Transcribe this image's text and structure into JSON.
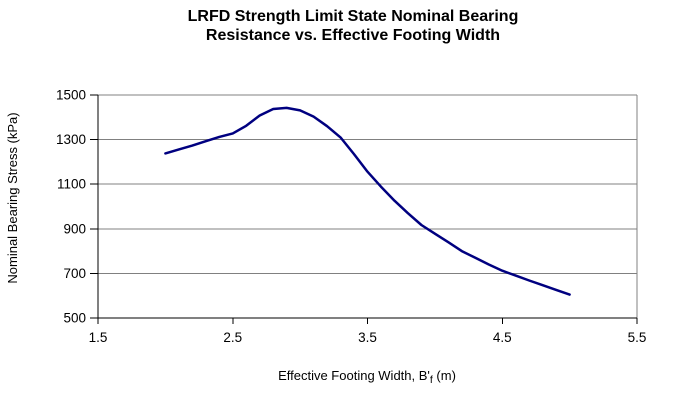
{
  "chart_data": {
    "type": "line",
    "title_line1": "LRFD Strength Limit State Nominal Bearing",
    "title_line2": "Resistance vs. Effective Footing Width",
    "ylabel": "Nominal Bearing Stress (kPa)",
    "xlabel_prefix": "Effective Footing Width, B'",
    "xlabel_sub": "f",
    "xlabel_suffix": " (m)",
    "xlim": [
      1.5,
      5.5
    ],
    "ylim": [
      500,
      1500
    ],
    "x_ticks": [
      1.5,
      2.5,
      3.5,
      4.5,
      5.5
    ],
    "x_tick_labels": [
      "1.5",
      "2.5",
      "3.5",
      "4.5",
      "5.5"
    ],
    "y_ticks": [
      500,
      700,
      900,
      1100,
      1300,
      1500
    ],
    "y_tick_labels": [
      "500",
      "700",
      "900",
      "1100",
      "1300",
      "1500"
    ],
    "grid": "horizontal",
    "legend": "none",
    "series": [
      {
        "color": "#000080",
        "points": [
          [
            2.0,
            1238
          ],
          [
            2.1,
            1256
          ],
          [
            2.2,
            1273
          ],
          [
            2.3,
            1293
          ],
          [
            2.4,
            1312
          ],
          [
            2.5,
            1328
          ],
          [
            2.6,
            1362
          ],
          [
            2.7,
            1408
          ],
          [
            2.8,
            1437
          ],
          [
            2.9,
            1442
          ],
          [
            3.0,
            1431
          ],
          [
            3.1,
            1403
          ],
          [
            3.2,
            1360
          ],
          [
            3.3,
            1310
          ],
          [
            3.4,
            1235
          ],
          [
            3.5,
            1156
          ],
          [
            3.6,
            1089
          ],
          [
            3.7,
            1026
          ],
          [
            3.8,
            970
          ],
          [
            3.9,
            917
          ],
          [
            4.0,
            878
          ],
          [
            4.1,
            840
          ],
          [
            4.2,
            800
          ],
          [
            4.3,
            770
          ],
          [
            4.4,
            740
          ],
          [
            4.5,
            712
          ],
          [
            4.6,
            690
          ],
          [
            4.7,
            668
          ],
          [
            4.8,
            647
          ],
          [
            4.9,
            626
          ],
          [
            5.0,
            605
          ]
        ]
      }
    ]
  },
  "colors": {
    "line": "#000080",
    "gridline": "#808080",
    "plot_border": "#808080",
    "axis": "#000000",
    "text": "#000000",
    "background": "#ffffff"
  }
}
